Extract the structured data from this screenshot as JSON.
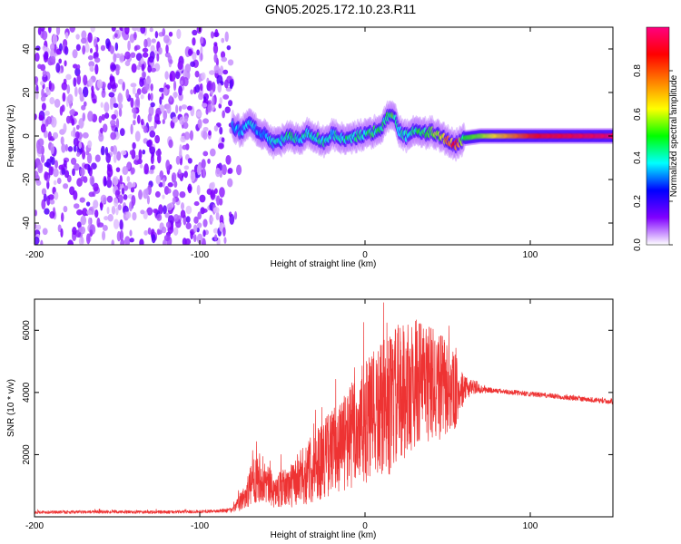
{
  "title": "GN05.2025.172.10.23.R11",
  "colors": {
    "snr_line": "#ee3333",
    "frame": "#000000"
  },
  "chart_data": [
    {
      "type": "heatmap",
      "xlabel": "Height of straight line (km)",
      "ylabel": "Frequency (Hz)",
      "xlim": [
        -200,
        150
      ],
      "ylim": [
        -50,
        50
      ],
      "xticks": [
        "-200",
        "-100",
        "0",
        "100"
      ],
      "xtick_values": [
        -200,
        -100,
        0,
        100
      ],
      "yticks": [
        "40",
        "20",
        "0",
        "-20",
        "-40"
      ],
      "ytick_values": [
        40,
        20,
        0,
        -20,
        -40
      ],
      "colorbar": {
        "label": "Normalized spectral amplitude",
        "range": [
          0,
          1
        ],
        "ticks": [
          "0.0",
          "0.2",
          "0.4",
          "0.6",
          "0.8"
        ],
        "tick_values": [
          0.0,
          0.2,
          0.4,
          0.6,
          0.8
        ],
        "colormap": [
          "#ffffff",
          "#8000ff",
          "#0000ff",
          "#00ffff",
          "#00ff00",
          "#ffff00",
          "#ff8000",
          "#ff0000",
          "#ff0080"
        ]
      },
      "noise_region_x": [
        -200,
        -80
      ],
      "ridge": {
        "x": [
          -80,
          -75,
          -70,
          -65,
          -60,
          -55,
          -50,
          -45,
          -40,
          -35,
          -30,
          -25,
          -20,
          -15,
          -10,
          -5,
          0,
          5,
          10,
          15,
          18,
          20,
          25,
          30,
          35,
          40,
          45,
          50,
          55,
          60,
          70,
          80,
          90,
          100,
          110,
          120,
          130,
          140,
          150
        ],
        "y": [
          4,
          2,
          5,
          3,
          0,
          -3,
          -2,
          0,
          -2,
          1,
          0,
          -3,
          1,
          -1,
          -2,
          0,
          1,
          2,
          4,
          10,
          8,
          3,
          0,
          3,
          1,
          2,
          0,
          -2,
          -4,
          -1,
          0,
          0,
          0,
          0,
          0,
          0,
          0,
          0,
          0
        ],
        "amplitude": [
          0.35,
          0.35,
          0.4,
          0.35,
          0.35,
          0.4,
          0.4,
          0.45,
          0.4,
          0.45,
          0.45,
          0.45,
          0.4,
          0.45,
          0.45,
          0.45,
          0.45,
          0.5,
          0.45,
          0.5,
          0.5,
          0.45,
          0.4,
          0.45,
          0.5,
          0.55,
          0.6,
          0.75,
          0.85,
          0.5,
          0.55,
          0.65,
          0.75,
          0.85,
          0.9,
          0.9,
          0.92,
          0.93,
          0.95
        ]
      }
    },
    {
      "type": "line",
      "xlabel": "Height of straight line (km)",
      "ylabel": "SNR (10 * v/v)",
      "xlim": [
        -200,
        150
      ],
      "ylim": [
        0,
        7000
      ],
      "xticks": [
        "-200",
        "-100",
        "0",
        "100"
      ],
      "xtick_values": [
        -200,
        -100,
        0,
        100
      ],
      "yticks": [
        "6000",
        "4000",
        "2000"
      ],
      "ytick_values": [
        6000,
        4000,
        2000
      ],
      "series": [
        {
          "x": [
            -200,
            -180,
            -160,
            -140,
            -120,
            -100,
            -90,
            -80,
            -75,
            -70,
            -65,
            -60,
            -55,
            -50,
            -45,
            -40,
            -35,
            -30,
            -25,
            -20,
            -15,
            -10,
            -5,
            0,
            5,
            10,
            15,
            20,
            25,
            30,
            35,
            40,
            45,
            50,
            55,
            60,
            65,
            70,
            80,
            90,
            100,
            110,
            120,
            130,
            140,
            150
          ],
          "y": [
            150,
            150,
            160,
            150,
            150,
            170,
            180,
            220,
            500,
            900,
            1400,
            1100,
            800,
            900,
            1000,
            1200,
            1400,
            1700,
            1900,
            2100,
            2300,
            2500,
            2800,
            3000,
            3200,
            3400,
            3600,
            3900,
            4100,
            4300,
            4400,
            4300,
            4200,
            4100,
            4000,
            4100,
            4200,
            4100,
            4050,
            4000,
            3950,
            3900,
            3850,
            3800,
            3750,
            3700
          ],
          "spread": [
            50,
            50,
            50,
            50,
            50,
            50,
            50,
            80,
            300,
            600,
            900,
            700,
            500,
            600,
            700,
            900,
            1000,
            1200,
            1300,
            1400,
            1500,
            1700,
            1900,
            2000,
            2100,
            2200,
            2300,
            2300,
            2200,
            2100,
            2000,
            1900,
            1800,
            1500,
            1200,
            400,
            250,
            120,
            80,
            80,
            80,
            80,
            80,
            80,
            80,
            80
          ]
        }
      ]
    }
  ]
}
